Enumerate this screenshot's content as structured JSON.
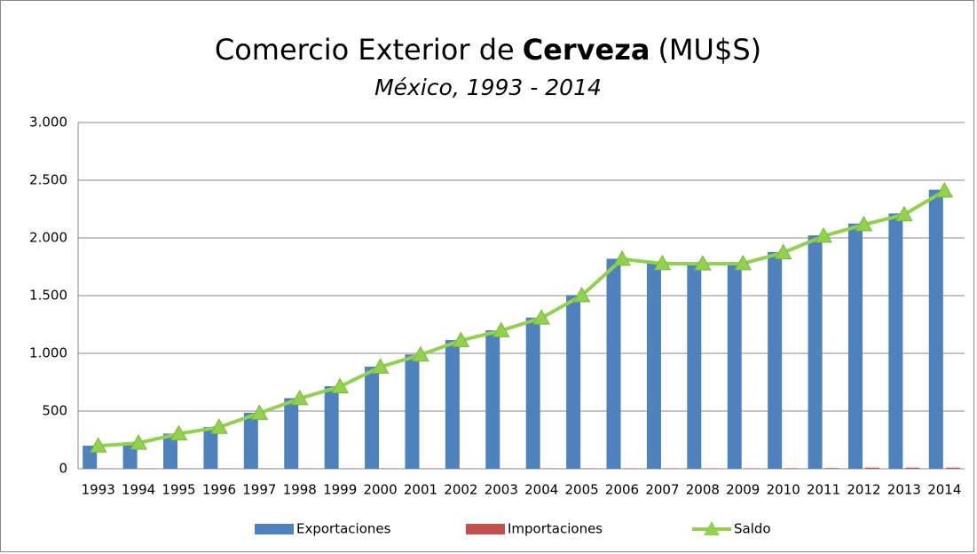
{
  "chart_data": {
    "type": "bar-line",
    "title": [
      "Comercio Exterior de",
      "Cerveza",
      "(MU$S)"
    ],
    "subtitle": "México, 1993 - 2014",
    "categories": [
      "1993",
      "1994",
      "1995",
      "1996",
      "1997",
      "1998",
      "1999",
      "2000",
      "2001",
      "2002",
      "2003",
      "2004",
      "2005",
      "2006",
      "2007",
      "2008",
      "2009",
      "2010",
      "2011",
      "2012",
      "2013",
      "2014"
    ],
    "series": [
      {
        "name": "Exportaciones",
        "type": "bar",
        "color": "#4f81bd",
        "values": [
          200,
          225,
          305,
          362,
          485,
          612,
          715,
          885,
          990,
          1115,
          1200,
          1310,
          1505,
          1820,
          1782,
          1780,
          1782,
          1878,
          2022,
          2125,
          2212,
          2418
        ]
      },
      {
        "name": "Importaciones",
        "type": "bar",
        "color": "#c0504d",
        "values": [
          2,
          2,
          2,
          2,
          3,
          3,
          3,
          3,
          3,
          3,
          3,
          3,
          4,
          4,
          4,
          4,
          4,
          5,
          6,
          10,
          10,
          10
        ]
      },
      {
        "name": "Saldo",
        "type": "line",
        "color": "#92d050",
        "values": [
          198,
          223,
          303,
          360,
          482,
          609,
          712,
          882,
          987,
          1112,
          1197,
          1307,
          1501,
          1816,
          1778,
          1776,
          1778,
          1873,
          2016,
          2115,
          2202,
          2408
        ]
      }
    ],
    "ylim": [
      0,
      3000
    ],
    "yticks": [
      0,
      500,
      {
        "value": 1000,
        "label": "1.000"
      },
      {
        "value": 1500,
        "label": "1.500"
      },
      {
        "value": 2000,
        "label": "2.000"
      },
      {
        "value": 2500,
        "label": "2.500"
      },
      {
        "value": 3000,
        "label": "3.000"
      }
    ],
    "grid": true,
    "legend": "bottom"
  }
}
